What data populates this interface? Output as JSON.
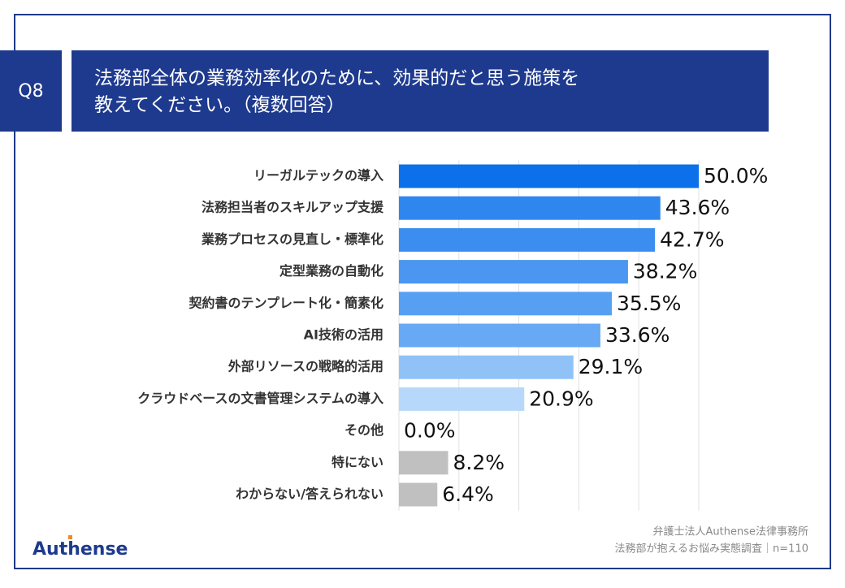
{
  "question": "Q8",
  "title_lines": [
    "法務部全体の業務効率化のために、効果的だと思う施策を",
    "教えてください。（複数回答）"
  ],
  "chart_data": {
    "type": "bar",
    "orientation": "horizontal",
    "categories": [
      "リーガルテックの導入",
      "法務担当者のスキルアップ支援",
      "業務プロセスの見直し・標準化",
      "定型業務の自動化",
      "契約書のテンプレート化・簡素化",
      "AI技術の活用",
      "外部リソースの戦略的活用",
      "クラウドベースの文書管理システムの導入",
      "その他",
      "特にない",
      "わからない/答えられない"
    ],
    "values": [
      50.0,
      43.6,
      42.7,
      38.2,
      35.5,
      33.6,
      29.1,
      20.9,
      0.0,
      8.2,
      6.4
    ],
    "value_labels": [
      "50.0%",
      "43.6%",
      "42.7%",
      "38.2%",
      "35.5%",
      "33.6%",
      "29.1%",
      "20.9%",
      "0.0%",
      "8.2%",
      "6.4%"
    ],
    "colors": [
      "#0b70ea",
      "#2f86ef",
      "#3b8df0",
      "#4a96f1",
      "#579ff3",
      "#68a9f5",
      "#90c2f8",
      "#b8d8fb",
      "#b8d8fb",
      "#c0c0c0",
      "#c0c0c0"
    ],
    "xlim": [
      0,
      50
    ],
    "xticks": [
      0,
      10,
      20,
      30,
      40,
      50
    ],
    "grid": true
  },
  "source": [
    "弁護士法人Authense法律事務所",
    "法務部が抱えるお悩み実態調査｜n=110"
  ],
  "logo": "Authense"
}
